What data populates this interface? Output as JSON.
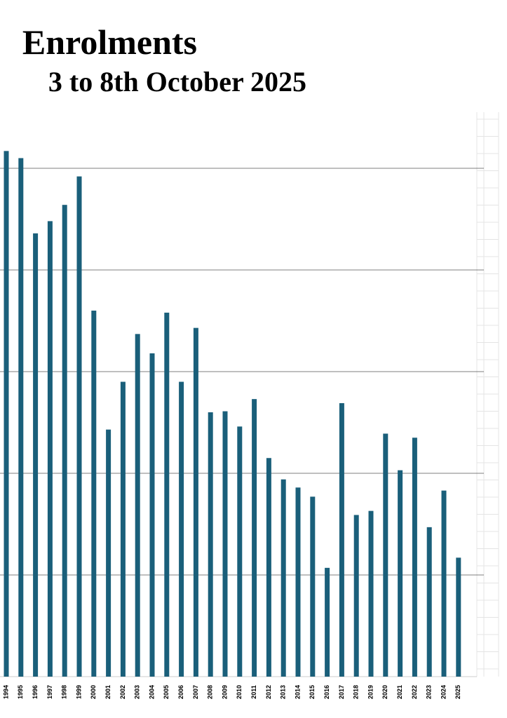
{
  "chart_data": {
    "type": "bar",
    "title": "Enrolments",
    "subtitle": "3 to 8th October 2025",
    "categories": [
      "1994",
      "1995",
      "1996",
      "1997",
      "1998",
      "1999",
      "2000",
      "2001",
      "2002",
      "2003",
      "2004",
      "2005",
      "2006",
      "2007",
      "2008",
      "2009",
      "2010",
      "2011",
      "2012",
      "2013",
      "2014",
      "2015",
      "2016",
      "2017",
      "2018",
      "2019",
      "2020",
      "2021",
      "2022",
      "2023",
      "2024",
      "2025"
    ],
    "values": [
      5.17,
      5.1,
      4.36,
      4.48,
      4.64,
      4.92,
      3.6,
      2.43,
      2.9,
      3.37,
      3.18,
      3.58,
      2.9,
      3.43,
      2.6,
      2.61,
      2.46,
      2.73,
      2.15,
      1.94,
      1.86,
      1.77,
      1.07,
      2.69,
      1.59,
      1.63,
      2.39,
      2.03,
      2.35,
      1.47,
      1.83,
      1.17
    ],
    "color": "#1a5f7a",
    "ylim": [
      0,
      5.6
    ],
    "yticks": [
      1,
      2,
      3,
      4,
      5
    ],
    "grid": true
  }
}
